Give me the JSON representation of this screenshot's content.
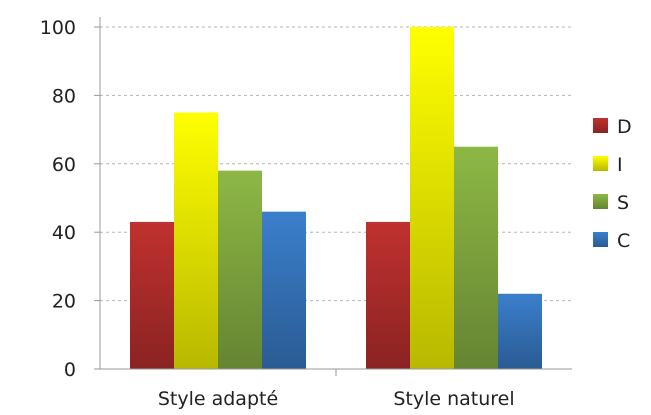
{
  "chart_data": {
    "type": "bar",
    "categories": [
      "Style adapté",
      "Style naturel"
    ],
    "series": [
      {
        "name": "D",
        "values": [
          43,
          43
        ],
        "color": "#c0312f"
      },
      {
        "name": "I",
        "values": [
          75,
          100
        ],
        "color": "#ffff00"
      },
      {
        "name": "S",
        "values": [
          58,
          65
        ],
        "color": "#8db845"
      },
      {
        "name": "C",
        "values": [
          46,
          22
        ],
        "color": "#3b7fcc"
      }
    ],
    "ylim": [
      0,
      100
    ],
    "yticks": [
      0,
      20,
      40,
      60,
      80,
      100
    ],
    "grid": true,
    "legend": "right"
  }
}
